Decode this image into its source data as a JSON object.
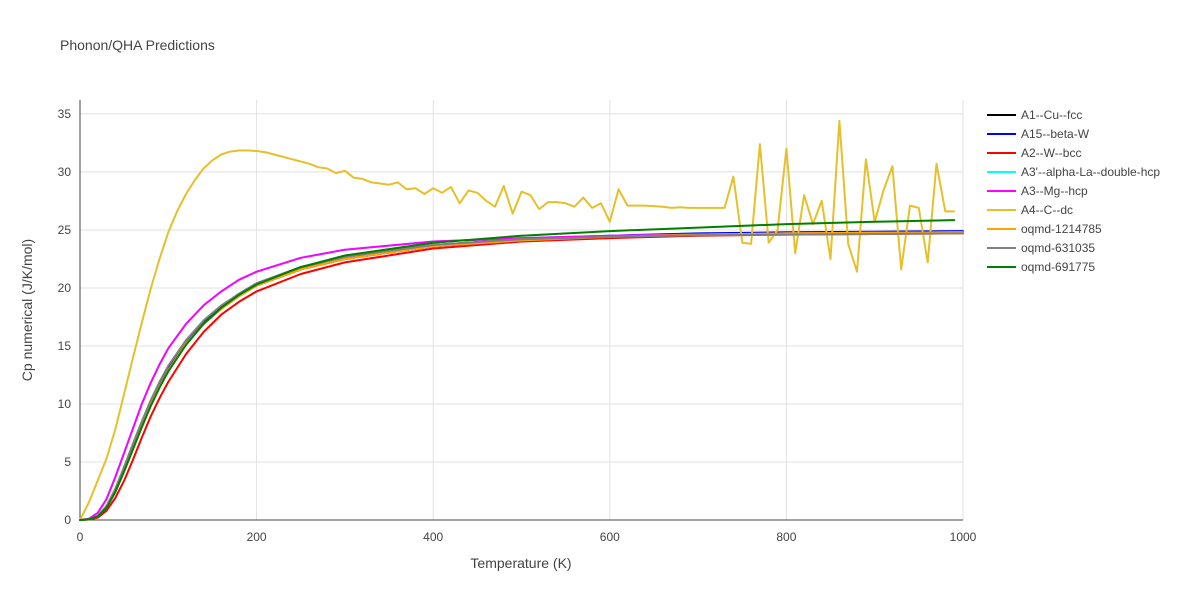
{
  "chart_data": {
    "type": "line",
    "title": "Phonon/QHA Predictions",
    "xlabel": "Temperature (K)",
    "ylabel": "Cp numerical (J/K/mol)",
    "xlim": [
      0,
      1000
    ],
    "ylim": [
      0,
      36.2
    ],
    "xticks": [
      0,
      200,
      400,
      600,
      800,
      1000
    ],
    "xtick_labels": [
      "0",
      "200",
      "400",
      "600",
      "800",
      "1000"
    ],
    "yticks": [
      0,
      5,
      10,
      15,
      20,
      25,
      30,
      35
    ],
    "ytick_labels": [
      "0",
      "5",
      "10",
      "15",
      "20",
      "25",
      "30",
      "35"
    ],
    "grid": true,
    "legend_position": "right",
    "series": [
      {
        "name": "A1--Cu--fcc",
        "color": "#000000",
        "points": [
          [
            0,
            0
          ],
          [
            10,
            0.05
          ],
          [
            20,
            0.3
          ],
          [
            30,
            1.1
          ],
          [
            40,
            2.5
          ],
          [
            50,
            4.3
          ],
          [
            60,
            6.2
          ],
          [
            70,
            8.1
          ],
          [
            80,
            9.9
          ],
          [
            90,
            11.5
          ],
          [
            100,
            12.9
          ],
          [
            120,
            15.2
          ],
          [
            140,
            16.9
          ],
          [
            160,
            18.2
          ],
          [
            180,
            19.3
          ],
          [
            200,
            20.2
          ],
          [
            250,
            21.6
          ],
          [
            300,
            22.5
          ],
          [
            400,
            23.6
          ],
          [
            500,
            24.1
          ],
          [
            600,
            24.4
          ],
          [
            700,
            24.6
          ],
          [
            800,
            24.7
          ],
          [
            900,
            24.75
          ],
          [
            1000,
            24.8
          ]
        ]
      },
      {
        "name": "A15--beta-W",
        "color": "#0000ff",
        "points": [
          [
            0,
            0
          ],
          [
            10,
            0.05
          ],
          [
            20,
            0.3
          ],
          [
            30,
            1.1
          ],
          [
            40,
            2.6
          ],
          [
            50,
            4.4
          ],
          [
            60,
            6.3
          ],
          [
            70,
            8.3
          ],
          [
            80,
            10.1
          ],
          [
            90,
            11.7
          ],
          [
            100,
            13.1
          ],
          [
            120,
            15.4
          ],
          [
            140,
            17.1
          ],
          [
            160,
            18.4
          ],
          [
            180,
            19.5
          ],
          [
            200,
            20.4
          ],
          [
            250,
            21.8
          ],
          [
            300,
            22.7
          ],
          [
            400,
            23.7
          ],
          [
            500,
            24.2
          ],
          [
            600,
            24.5
          ],
          [
            700,
            24.7
          ],
          [
            800,
            24.8
          ],
          [
            900,
            24.85
          ],
          [
            1000,
            24.9
          ]
        ]
      },
      {
        "name": "A2--W--bcc",
        "color": "#ff0000",
        "points": [
          [
            0,
            0
          ],
          [
            10,
            0.04
          ],
          [
            20,
            0.2
          ],
          [
            30,
            0.8
          ],
          [
            40,
            1.9
          ],
          [
            50,
            3.4
          ],
          [
            60,
            5.2
          ],
          [
            70,
            7.1
          ],
          [
            80,
            8.9
          ],
          [
            90,
            10.5
          ],
          [
            100,
            11.9
          ],
          [
            120,
            14.3
          ],
          [
            140,
            16.2
          ],
          [
            160,
            17.7
          ],
          [
            180,
            18.8
          ],
          [
            200,
            19.7
          ],
          [
            250,
            21.2
          ],
          [
            300,
            22.2
          ],
          [
            400,
            23.4
          ],
          [
            500,
            24.0
          ],
          [
            600,
            24.3
          ],
          [
            700,
            24.5
          ],
          [
            800,
            24.6
          ],
          [
            900,
            24.65
          ],
          [
            1000,
            24.7
          ]
        ]
      },
      {
        "name": "A3'--alpha-La--double-hcp",
        "color": "#00ffff",
        "points": [
          [
            0,
            0
          ],
          [
            10,
            0.1
          ],
          [
            20,
            0.6
          ],
          [
            30,
            1.8
          ],
          [
            40,
            3.7
          ],
          [
            50,
            5.8
          ],
          [
            60,
            7.9
          ],
          [
            70,
            10.0
          ],
          [
            80,
            11.8
          ],
          [
            90,
            13.4
          ],
          [
            100,
            14.8
          ],
          [
            120,
            16.9
          ],
          [
            140,
            18.5
          ],
          [
            160,
            19.7
          ],
          [
            180,
            20.7
          ],
          [
            200,
            21.4
          ],
          [
            250,
            22.6
          ],
          [
            300,
            23.3
          ],
          [
            400,
            24.0
          ],
          [
            500,
            24.3
          ],
          [
            600,
            24.5
          ],
          [
            700,
            24.6
          ],
          [
            800,
            24.7
          ],
          [
            900,
            24.75
          ],
          [
            1000,
            24.8
          ]
        ]
      },
      {
        "name": "A3--Mg--hcp",
        "color": "#ff00ff",
        "points": [
          [
            0,
            0
          ],
          [
            10,
            0.1
          ],
          [
            20,
            0.6
          ],
          [
            30,
            1.8
          ],
          [
            40,
            3.7
          ],
          [
            50,
            5.8
          ],
          [
            60,
            7.9
          ],
          [
            70,
            10.0
          ],
          [
            80,
            11.8
          ],
          [
            90,
            13.4
          ],
          [
            100,
            14.8
          ],
          [
            120,
            16.9
          ],
          [
            140,
            18.5
          ],
          [
            160,
            19.7
          ],
          [
            180,
            20.7
          ],
          [
            200,
            21.4
          ],
          [
            250,
            22.6
          ],
          [
            300,
            23.3
          ],
          [
            400,
            24.0
          ],
          [
            500,
            24.3
          ],
          [
            600,
            24.5
          ],
          [
            700,
            24.6
          ],
          [
            800,
            24.7
          ],
          [
            900,
            24.75
          ],
          [
            1000,
            24.8
          ]
        ]
      },
      {
        "name": "A4--C--dc",
        "color": "#e6c02a",
        "points": [
          [
            0,
            0
          ],
          [
            10,
            1.5
          ],
          [
            20,
            3.4
          ],
          [
            30,
            5.3
          ],
          [
            40,
            7.8
          ],
          [
            50,
            10.9
          ],
          [
            60,
            14.0
          ],
          [
            70,
            17.0
          ],
          [
            80,
            19.9
          ],
          [
            90,
            22.5
          ],
          [
            100,
            24.8
          ],
          [
            110,
            26.6
          ],
          [
            120,
            28.1
          ],
          [
            130,
            29.3
          ],
          [
            140,
            30.3
          ],
          [
            150,
            31.0
          ],
          [
            160,
            31.5
          ],
          [
            170,
            31.75
          ],
          [
            180,
            31.85
          ],
          [
            190,
            31.85
          ],
          [
            200,
            31.8
          ],
          [
            210,
            31.7
          ],
          [
            220,
            31.5
          ],
          [
            230,
            31.3
          ],
          [
            240,
            31.1
          ],
          [
            250,
            30.9
          ],
          [
            260,
            30.7
          ],
          [
            270,
            30.4
          ],
          [
            280,
            30.3
          ],
          [
            290,
            29.9
          ],
          [
            300,
            30.1
          ],
          [
            310,
            29.5
          ],
          [
            320,
            29.4
          ],
          [
            330,
            29.1
          ],
          [
            340,
            29.0
          ],
          [
            350,
            28.9
          ],
          [
            360,
            29.1
          ],
          [
            370,
            28.5
          ],
          [
            380,
            28.6
          ],
          [
            390,
            28.1
          ],
          [
            400,
            28.6
          ],
          [
            410,
            28.2
          ],
          [
            420,
            28.7
          ],
          [
            430,
            27.3
          ],
          [
            440,
            28.4
          ],
          [
            450,
            28.2
          ],
          [
            460,
            27.5
          ],
          [
            470,
            27.0
          ],
          [
            480,
            28.8
          ],
          [
            490,
            26.4
          ],
          [
            500,
            28.3
          ],
          [
            510,
            28.0
          ],
          [
            520,
            26.8
          ],
          [
            530,
            27.4
          ],
          [
            540,
            27.4
          ],
          [
            550,
            27.3
          ],
          [
            560,
            27.0
          ],
          [
            570,
            27.8
          ],
          [
            580,
            26.9
          ],
          [
            590,
            27.3
          ],
          [
            600,
            25.7
          ],
          [
            610,
            28.5
          ],
          [
            620,
            27.1
          ],
          [
            640,
            27.1
          ],
          [
            660,
            27.0
          ],
          [
            670,
            26.9
          ],
          [
            680,
            26.95
          ],
          [
            690,
            26.9
          ],
          [
            700,
            26.9
          ],
          [
            720,
            26.9
          ],
          [
            730,
            26.9
          ],
          [
            740,
            29.6
          ],
          [
            750,
            23.9
          ],
          [
            760,
            23.8
          ],
          [
            770,
            32.4
          ],
          [
            780,
            23.9
          ],
          [
            790,
            25.0
          ],
          [
            800,
            32.0
          ],
          [
            810,
            23.0
          ],
          [
            820,
            28.0
          ],
          [
            830,
            25.5
          ],
          [
            840,
            27.5
          ],
          [
            850,
            22.5
          ],
          [
            860,
            34.4
          ],
          [
            870,
            23.8
          ],
          [
            880,
            21.4
          ],
          [
            890,
            31.1
          ],
          [
            900,
            25.7
          ],
          [
            910,
            28.4
          ],
          [
            920,
            30.5
          ],
          [
            930,
            21.6
          ],
          [
            940,
            27.1
          ],
          [
            950,
            26.9
          ],
          [
            960,
            22.2
          ],
          [
            970,
            30.7
          ],
          [
            980,
            26.6
          ],
          [
            990,
            26.6
          ]
        ]
      },
      {
        "name": "oqmd-1214785",
        "color": "#ffa500",
        "points": [
          [
            0,
            0
          ],
          [
            10,
            0.05
          ],
          [
            20,
            0.3
          ],
          [
            30,
            1.1
          ],
          [
            40,
            2.5
          ],
          [
            50,
            4.3
          ],
          [
            60,
            6.2
          ],
          [
            70,
            8.1
          ],
          [
            80,
            9.9
          ],
          [
            90,
            11.5
          ],
          [
            100,
            12.9
          ],
          [
            120,
            15.2
          ],
          [
            140,
            16.9
          ],
          [
            160,
            18.2
          ],
          [
            180,
            19.3
          ],
          [
            200,
            20.2
          ],
          [
            250,
            21.6
          ],
          [
            300,
            22.5
          ],
          [
            400,
            23.6
          ],
          [
            500,
            24.1
          ],
          [
            600,
            24.4
          ],
          [
            700,
            24.6
          ],
          [
            800,
            24.7
          ],
          [
            900,
            24.75
          ],
          [
            1000,
            24.8
          ]
        ]
      },
      {
        "name": "oqmd-631035",
        "color": "#808080",
        "points": [
          [
            0,
            0
          ],
          [
            10,
            0.05
          ],
          [
            20,
            0.35
          ],
          [
            30,
            1.2
          ],
          [
            40,
            2.7
          ],
          [
            50,
            4.6
          ],
          [
            60,
            6.6
          ],
          [
            70,
            8.5
          ],
          [
            80,
            10.3
          ],
          [
            90,
            11.9
          ],
          [
            100,
            13.3
          ],
          [
            120,
            15.5
          ],
          [
            140,
            17.2
          ],
          [
            160,
            18.5
          ],
          [
            180,
            19.5
          ],
          [
            200,
            20.4
          ],
          [
            250,
            21.8
          ],
          [
            300,
            22.7
          ],
          [
            400,
            23.7
          ],
          [
            500,
            24.2
          ],
          [
            600,
            24.4
          ],
          [
            700,
            24.55
          ],
          [
            800,
            24.6
          ],
          [
            900,
            24.65
          ],
          [
            1000,
            24.7
          ]
        ]
      },
      {
        "name": "oqmd-691775",
        "color": "#008000",
        "points": [
          [
            0,
            0
          ],
          [
            10,
            0.05
          ],
          [
            20,
            0.3
          ],
          [
            30,
            1.05
          ],
          [
            40,
            2.4
          ],
          [
            50,
            4.2
          ],
          [
            60,
            6.1
          ],
          [
            70,
            8.0
          ],
          [
            80,
            9.8
          ],
          [
            90,
            11.4
          ],
          [
            100,
            12.8
          ],
          [
            120,
            15.1
          ],
          [
            140,
            16.9
          ],
          [
            160,
            18.3
          ],
          [
            180,
            19.4
          ],
          [
            200,
            20.3
          ],
          [
            250,
            21.8
          ],
          [
            300,
            22.8
          ],
          [
            400,
            23.9
          ],
          [
            500,
            24.5
          ],
          [
            600,
            24.9
          ],
          [
            700,
            25.2
          ],
          [
            800,
            25.5
          ],
          [
            900,
            25.7
          ],
          [
            990,
            25.85
          ]
        ]
      }
    ]
  }
}
